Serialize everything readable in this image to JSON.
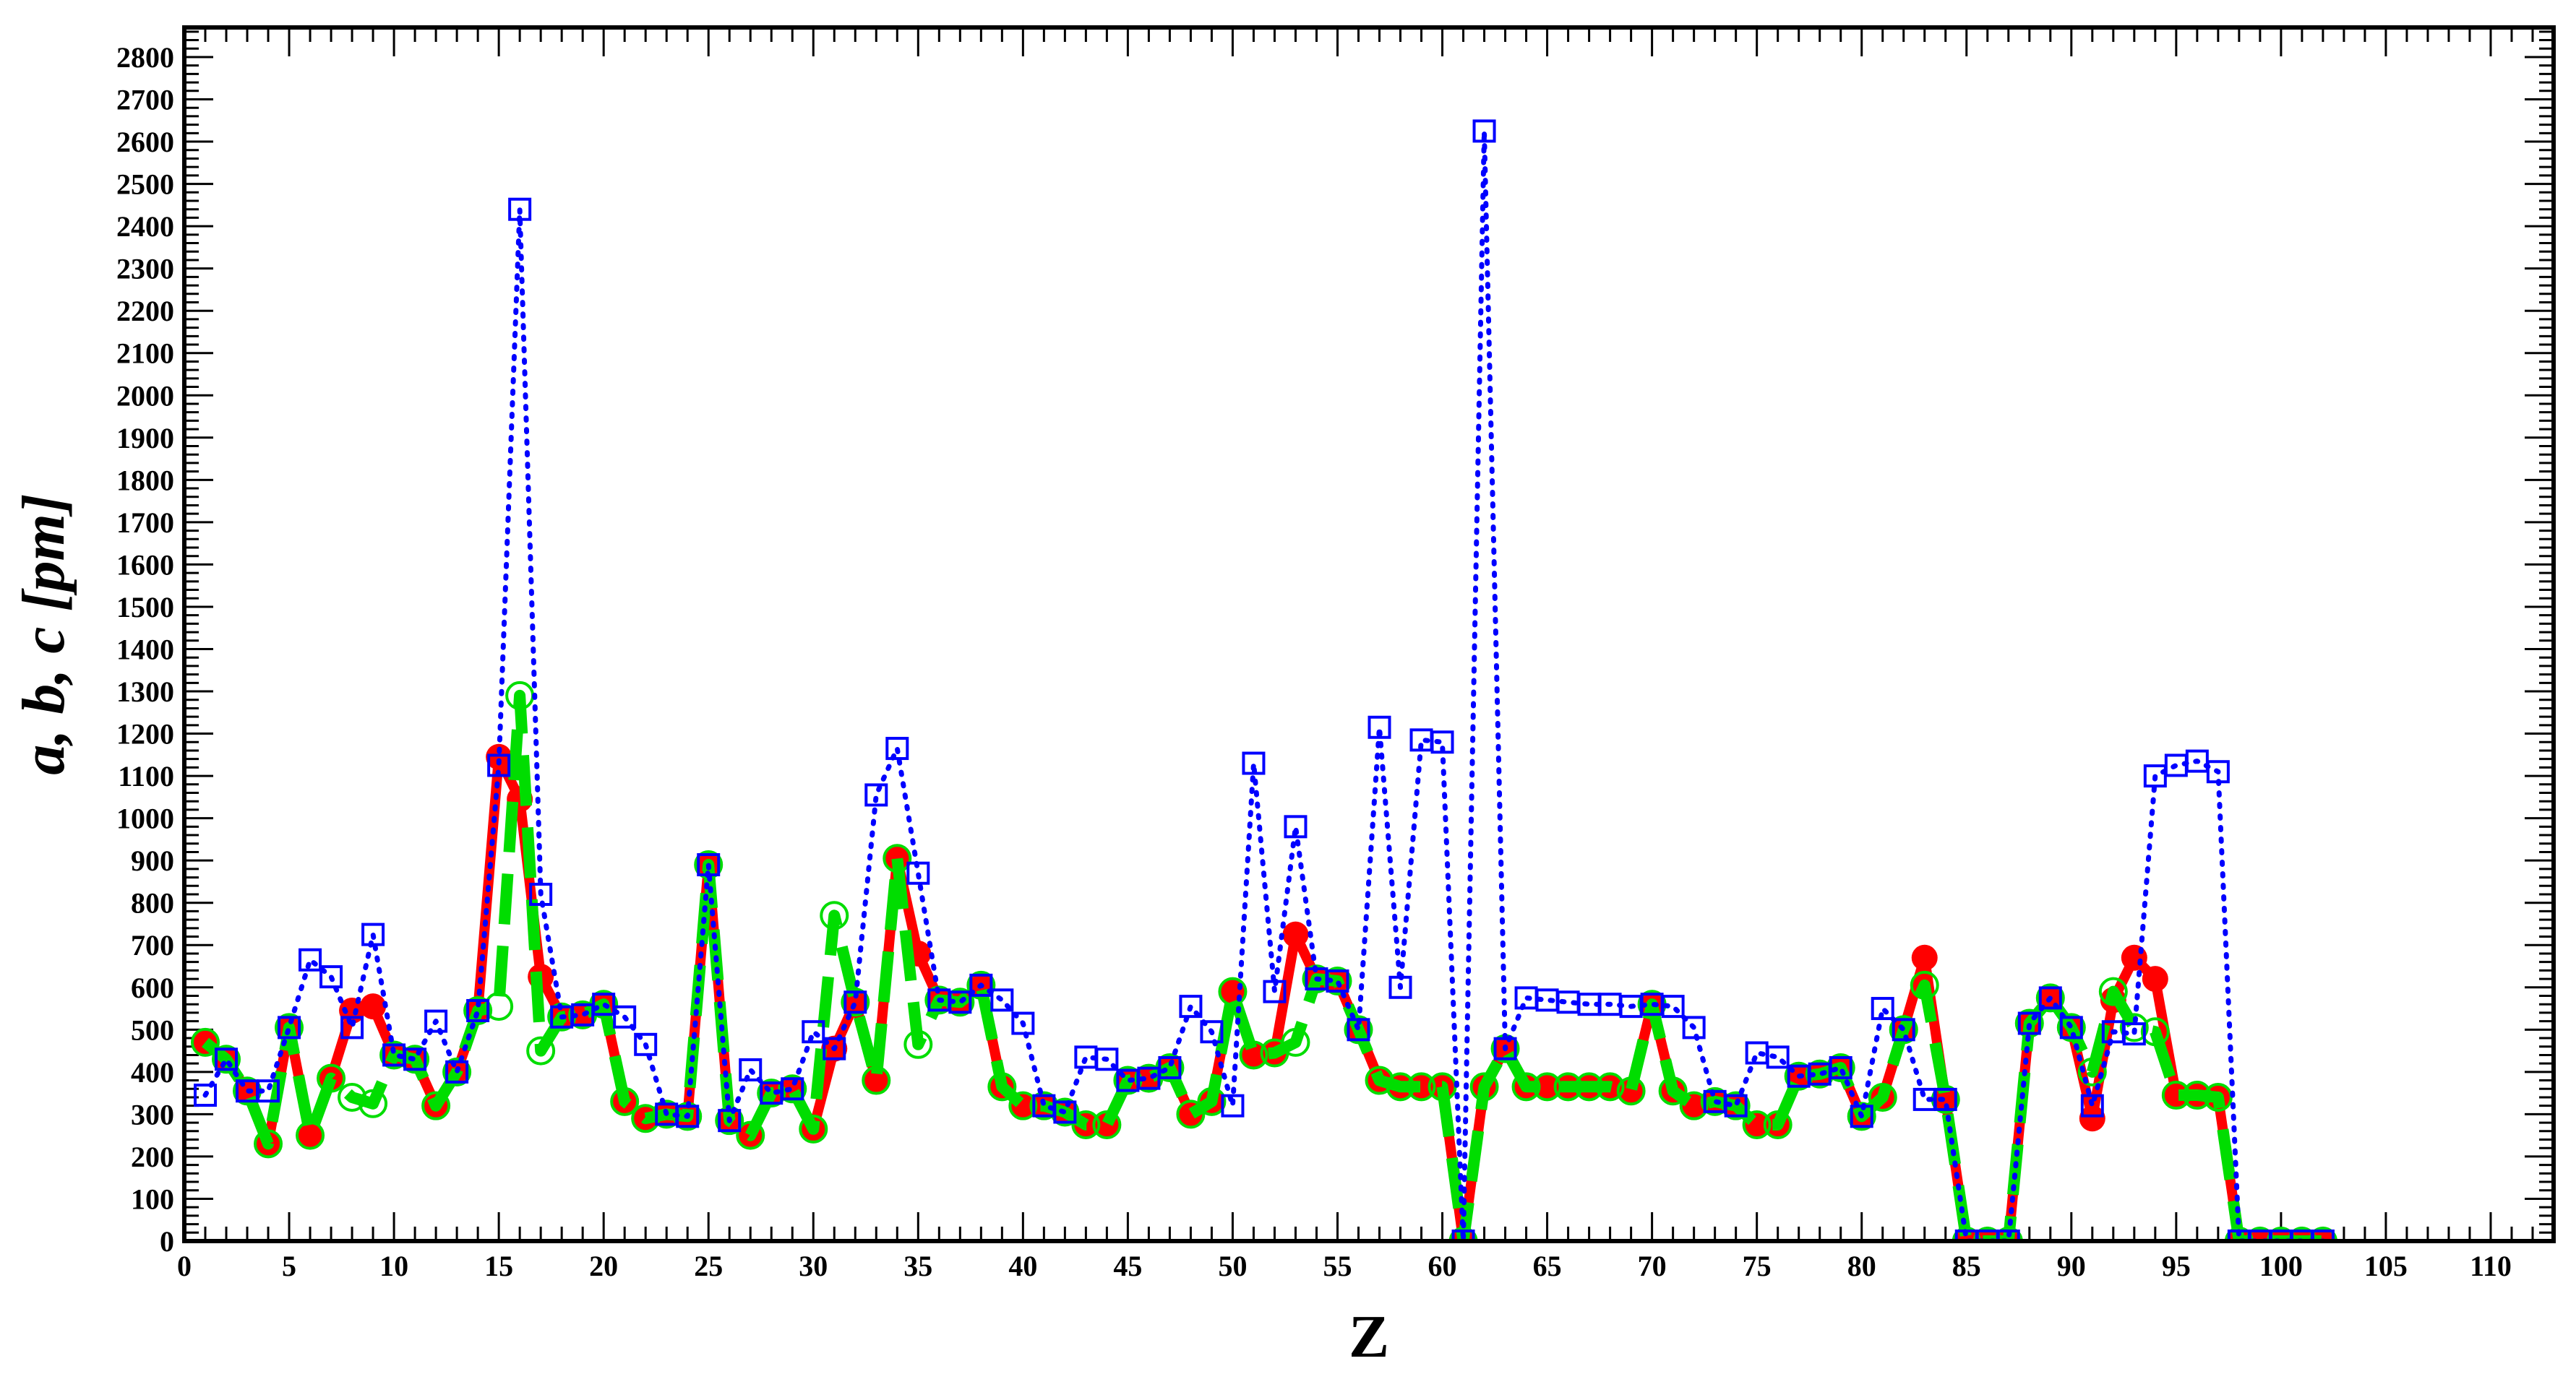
{
  "chart_data": {
    "type": "line",
    "xlabel": "Z",
    "ylabel": "a, b, c [pm]",
    "xlim": [
      0,
      113
    ],
    "ylim": [
      0,
      2870
    ],
    "x_major_ticks": [
      0,
      5,
      10,
      15,
      20,
      25,
      30,
      35,
      40,
      45,
      50,
      55,
      60,
      65,
      70,
      75,
      80,
      85,
      90,
      95,
      100,
      105,
      110
    ],
    "y_major_ticks": [
      0,
      100,
      200,
      300,
      400,
      500,
      600,
      700,
      800,
      900,
      1000,
      1100,
      1200,
      1300,
      1400,
      1500,
      1600,
      1700,
      1800,
      1900,
      2000,
      2100,
      2200,
      2300,
      2400,
      2500,
      2600,
      2700,
      2800
    ],
    "grid": false,
    "colors": {
      "a": "#ff0000",
      "b": "#00dd00",
      "c": "#0000ff"
    },
    "series": [
      {
        "marker": "filled-circle",
        "line": "solid",
        "x": [
          1,
          2,
          3,
          4,
          5,
          6,
          7,
          8,
          9,
          10,
          11,
          12,
          13,
          14,
          15,
          16,
          17,
          18,
          19,
          20,
          21,
          22,
          23,
          24,
          25,
          26,
          27,
          28,
          29,
          30,
          31,
          32,
          33,
          34,
          35,
          36,
          37,
          38,
          39,
          40,
          41,
          42,
          43,
          44,
          45,
          46,
          47,
          48,
          49,
          50,
          51,
          52,
          53,
          54,
          55,
          56,
          57,
          58,
          59,
          60,
          61,
          62,
          63,
          64,
          65,
          66,
          67,
          68,
          69,
          70,
          71,
          72,
          73,
          74,
          75,
          76,
          77,
          78,
          79,
          80,
          81,
          82,
          83,
          84,
          85,
          86,
          87,
          88,
          89,
          90,
          91,
          92,
          93,
          94,
          95,
          96,
          97,
          98,
          99,
          100,
          101,
          102
        ],
        "y": [
          470,
          430,
          355,
          230,
          505,
          250,
          385,
          545,
          555,
          440,
          430,
          320,
          400,
          545,
          1145,
          1045,
          625,
          530,
          535,
          560,
          330,
          290,
          300,
          295,
          890,
          285,
          250,
          350,
          360,
          265,
          455,
          565,
          380,
          905,
          680,
          570,
          565,
          605,
          365,
          320,
          320,
          305,
          275,
          275,
          380,
          385,
          410,
          300,
          330,
          590,
          440,
          445,
          725,
          620,
          615,
          500,
          380,
          365,
          365,
          365,
          0,
          365,
          455,
          365,
          365,
          365,
          365,
          365,
          355,
          560,
          355,
          320,
          330,
          320,
          275,
          275,
          390,
          395,
          410,
          295,
          340,
          500,
          670,
          335,
          0,
          0,
          0,
          515,
          575,
          505,
          290,
          570,
          670,
          620,
          345,
          345,
          340,
          0,
          0,
          0,
          0,
          0
        ]
      },
      {
        "marker": "open-circle",
        "line": "dashed",
        "x": [
          1,
          2,
          3,
          4,
          5,
          6,
          7,
          8,
          9,
          10,
          11,
          12,
          13,
          14,
          15,
          16,
          17,
          18,
          19,
          20,
          21,
          22,
          23,
          24,
          25,
          26,
          27,
          28,
          29,
          30,
          31,
          32,
          33,
          34,
          35,
          36,
          37,
          38,
          39,
          40,
          41,
          42,
          43,
          44,
          45,
          46,
          47,
          48,
          49,
          50,
          51,
          52,
          53,
          54,
          55,
          56,
          57,
          58,
          59,
          60,
          61,
          62,
          63,
          64,
          65,
          66,
          67,
          68,
          69,
          70,
          71,
          72,
          73,
          74,
          75,
          76,
          77,
          78,
          79,
          80,
          81,
          82,
          83,
          84,
          85,
          86,
          87,
          88,
          89,
          90,
          91,
          92,
          93,
          94,
          95,
          96,
          97,
          98,
          99,
          100,
          101,
          102
        ],
        "y": [
          470,
          430,
          355,
          230,
          505,
          250,
          385,
          340,
          325,
          440,
          430,
          320,
          400,
          545,
          555,
          1290,
          450,
          530,
          535,
          560,
          330,
          290,
          300,
          295,
          890,
          285,
          250,
          350,
          360,
          265,
          770,
          565,
          380,
          905,
          465,
          570,
          565,
          605,
          365,
          320,
          320,
          305,
          275,
          275,
          380,
          385,
          410,
          300,
          330,
          590,
          440,
          445,
          470,
          620,
          615,
          500,
          380,
          365,
          365,
          365,
          0,
          365,
          455,
          365,
          365,
          365,
          365,
          365,
          355,
          560,
          355,
          320,
          330,
          320,
          275,
          275,
          390,
          395,
          410,
          295,
          340,
          500,
          605,
          335,
          0,
          0,
          0,
          515,
          575,
          505,
          400,
          590,
          505,
          495,
          345,
          345,
          340,
          0,
          0,
          0,
          0,
          0
        ]
      },
      {
        "marker": "open-square",
        "line": "dotted",
        "x": [
          1,
          2,
          3,
          4,
          5,
          6,
          7,
          8,
          9,
          10,
          11,
          12,
          13,
          14,
          15,
          16,
          17,
          18,
          19,
          20,
          21,
          22,
          23,
          24,
          25,
          26,
          27,
          28,
          29,
          30,
          31,
          32,
          33,
          34,
          35,
          36,
          37,
          38,
          39,
          40,
          41,
          42,
          43,
          44,
          45,
          46,
          47,
          48,
          49,
          50,
          51,
          52,
          53,
          54,
          55,
          56,
          57,
          58,
          59,
          60,
          61,
          62,
          63,
          64,
          65,
          66,
          67,
          68,
          69,
          70,
          71,
          72,
          73,
          74,
          75,
          76,
          77,
          78,
          79,
          80,
          81,
          82,
          83,
          84,
          85,
          86,
          87,
          88,
          89,
          90,
          91,
          92,
          93,
          94,
          95,
          96,
          97,
          98,
          99,
          100,
          101,
          102
        ],
        "y": [
          345,
          430,
          355,
          355,
          505,
          665,
          625,
          505,
          725,
          440,
          430,
          520,
          400,
          545,
          1125,
          2440,
          820,
          530,
          535,
          560,
          530,
          465,
          300,
          295,
          890,
          285,
          405,
          350,
          360,
          495,
          455,
          565,
          1055,
          1165,
          870,
          570,
          565,
          605,
          570,
          515,
          320,
          305,
          435,
          430,
          380,
          385,
          410,
          555,
          495,
          320,
          1130,
          590,
          980,
          620,
          615,
          500,
          1215,
          600,
          1185,
          1180,
          0,
          2625,
          455,
          575,
          570,
          565,
          560,
          560,
          555,
          560,
          555,
          505,
          330,
          320,
          445,
          435,
          390,
          395,
          410,
          295,
          550,
          500,
          335,
          335,
          0,
          0,
          0,
          515,
          575,
          505,
          320,
          495,
          490,
          1100,
          1125,
          1135,
          1110,
          0,
          0,
          0,
          0,
          0
        ]
      }
    ]
  }
}
